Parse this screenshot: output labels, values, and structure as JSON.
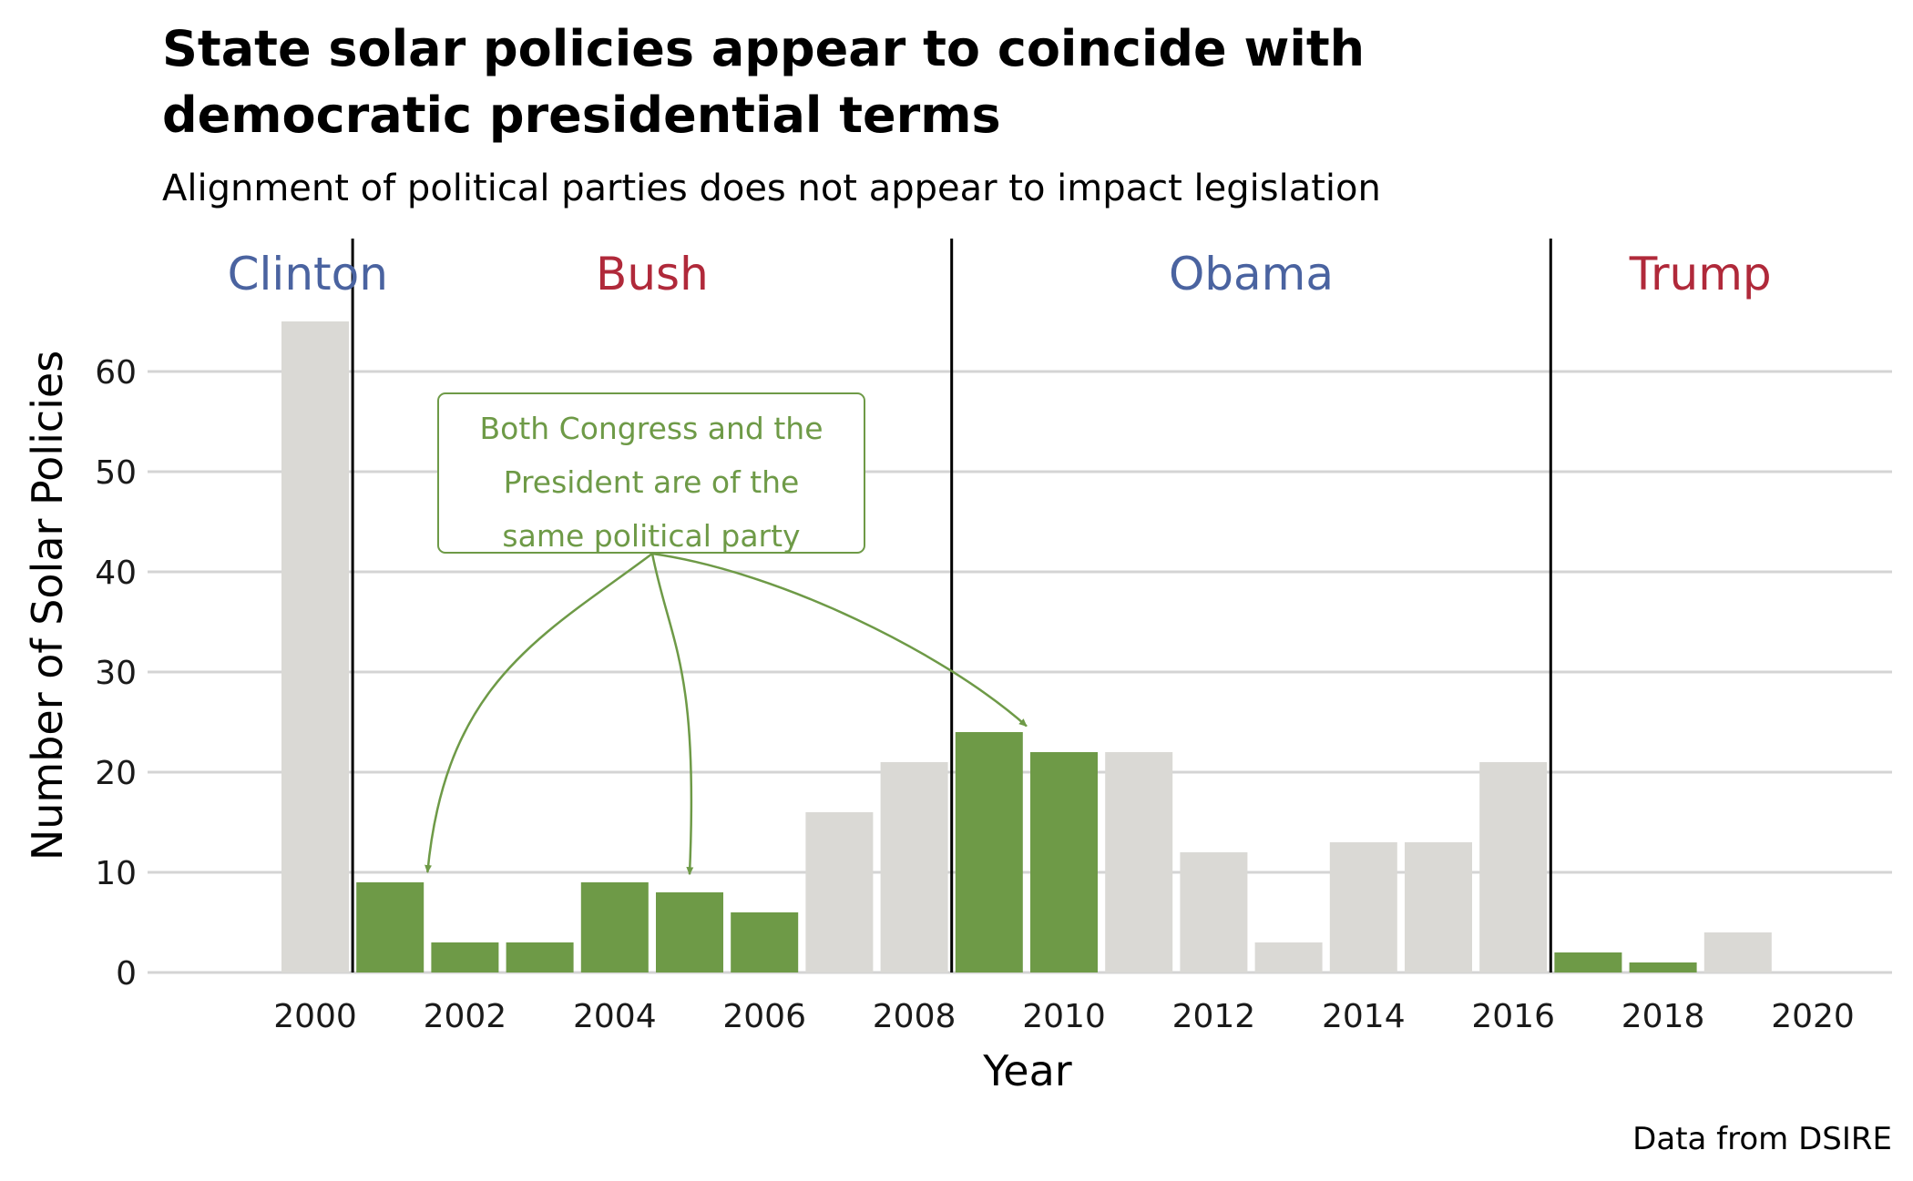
{
  "title_line1": "State solar policies appear to coincide with",
  "title_line2": "democratic presidential terms",
  "subtitle": "Alignment of political parties does not appear to impact legislation",
  "caption": "Data from DSIRE",
  "chart_data": {
    "type": "bar",
    "xlabel": "Year",
    "ylabel": "Number of Solar Policies",
    "xlim": [
      1998.2,
      2021.2
    ],
    "ylim": [
      0,
      66
    ],
    "x_ticks": [
      2000,
      2002,
      2004,
      2006,
      2008,
      2010,
      2012,
      2014,
      2016,
      2018,
      2020
    ],
    "y_ticks": [
      0,
      10,
      20,
      30,
      40,
      50,
      60
    ],
    "grid": "horizontal",
    "x": [
      2000,
      2001,
      2002,
      2003,
      2004,
      2005,
      2006,
      2007,
      2008,
      2009,
      2010,
      2011,
      2012,
      2013,
      2014,
      2015,
      2016,
      2017,
      2018,
      2019
    ],
    "values": [
      65,
      9,
      3,
      3,
      9,
      8,
      6,
      16,
      21,
      24,
      22,
      22,
      12,
      3,
      13,
      13,
      21,
      2,
      1,
      4
    ],
    "same_party": [
      false,
      true,
      true,
      true,
      true,
      true,
      true,
      false,
      false,
      true,
      true,
      false,
      false,
      false,
      false,
      false,
      false,
      true,
      true,
      false
    ],
    "colors": {
      "same_party": "#6e9a47",
      "other": "#dad9d5",
      "democrat": "#4a63a0",
      "republican": "#b0293a"
    },
    "terms": [
      {
        "label": "Clinton",
        "party": "democrat",
        "label_x": 1999.9
      },
      {
        "label": "Bush",
        "party": "republican",
        "label_x": 2004.5
      },
      {
        "label": "Obama",
        "party": "democrat",
        "label_x": 2012.5
      },
      {
        "label": "Trump",
        "party": "republican",
        "label_x": 2018.5
      }
    ],
    "term_boundaries": [
      2000.5,
      2008.5,
      2016.5
    ],
    "annotation": {
      "lines": [
        "Both Congress and the",
        "President are of the",
        "same political party"
      ],
      "arrow_targets": [
        {
          "x": 2001.5,
          "y": 10
        },
        {
          "x": 2005,
          "y": 9.8
        },
        {
          "x": 2009.5,
          "y": 24.6
        }
      ]
    }
  }
}
